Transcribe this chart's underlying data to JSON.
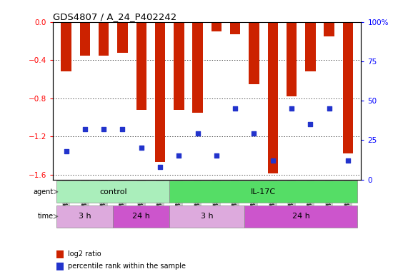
{
  "title": "GDS4807 / A_24_P402242",
  "samples": [
    "GSM808637",
    "GSM808642",
    "GSM808643",
    "GSM808634",
    "GSM808645",
    "GSM808646",
    "GSM808633",
    "GSM808638",
    "GSM808640",
    "GSM808641",
    "GSM808644",
    "GSM808635",
    "GSM808636",
    "GSM808639",
    "GSM808647",
    "GSM808648"
  ],
  "log2_ratio": [
    -0.52,
    -0.35,
    -0.35,
    -0.32,
    -0.92,
    -1.47,
    -0.92,
    -0.95,
    -0.1,
    -0.13,
    -0.65,
    -1.59,
    -0.78,
    -0.52,
    -0.15,
    -1.38
  ],
  "percentile": [
    18,
    32,
    32,
    32,
    20,
    8,
    15,
    29,
    15,
    45,
    29,
    12,
    45,
    35,
    45,
    12
  ],
  "ylim_left": [
    -1.65,
    0.0
  ],
  "yticks_left": [
    -1.6,
    -1.2,
    -0.8,
    -0.4,
    0.0
  ],
  "yticks_right": [
    0,
    25,
    50,
    75,
    100
  ],
  "bar_color": "#cc2200",
  "square_color": "#2233cc",
  "agent_groups": [
    {
      "label": "control",
      "start": 0,
      "end": 6,
      "color": "#aaeebb"
    },
    {
      "label": "IL-17C",
      "start": 6,
      "end": 16,
      "color": "#55dd66"
    }
  ],
  "time_groups": [
    {
      "label": "3 h",
      "start": 0,
      "end": 3,
      "color": "#ddaadd"
    },
    {
      "label": "24 h",
      "start": 3,
      "end": 6,
      "color": "#cc55cc"
    },
    {
      "label": "3 h",
      "start": 6,
      "end": 10,
      "color": "#ddaadd"
    },
    {
      "label": "24 h",
      "start": 10,
      "end": 16,
      "color": "#cc55cc"
    }
  ],
  "legend_items": [
    {
      "color": "#cc2200",
      "label": "log2 ratio"
    },
    {
      "color": "#2233cc",
      "label": "percentile rank within the sample"
    }
  ],
  "background_color": "#ffffff",
  "bar_width": 0.55,
  "sq_size": 16
}
